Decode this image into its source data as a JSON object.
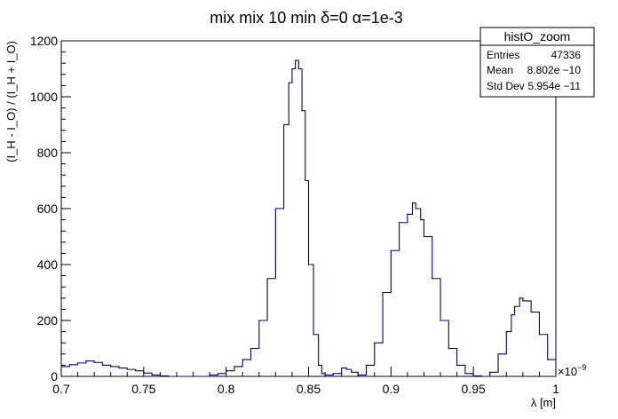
{
  "chart_data": {
    "type": "line",
    "title": "mix mix 10 min  δ=0 α=1e-3",
    "xlabel": "λ [m]",
    "ylabel": "(I_H - I_O) / (I_H + I_O)",
    "x_exponent_label": "×10",
    "x_exponent_power": "−9",
    "xlim": [
      0.7,
      1.0
    ],
    "ylim": [
      0,
      1200
    ],
    "x_ticks": [
      "0.7",
      "0.75",
      "0.8",
      "0.85",
      "0.9",
      "0.95",
      "1"
    ],
    "y_ticks": [
      "0",
      "200",
      "400",
      "600",
      "800",
      "1000",
      "1200"
    ],
    "line_color": "#00007f",
    "grid": false,
    "legend": "none",
    "stats_box": {
      "name": "histO_zoom",
      "rows": [
        {
          "label": "Entries",
          "value": "47336"
        },
        {
          "label": "Mean",
          "value": "8.802e −10"
        },
        {
          "label": "Std Dev",
          "value": "5.954e −11"
        }
      ]
    },
    "series": [
      {
        "x": [
          0.7,
          0.705,
          0.71,
          0.715,
          0.72,
          0.725,
          0.73,
          0.735,
          0.74,
          0.745,
          0.75,
          0.755,
          0.76,
          0.765,
          0.77,
          0.775,
          0.78,
          0.785,
          0.79,
          0.795,
          0.8,
          0.805,
          0.81,
          0.815,
          0.82,
          0.825,
          0.83,
          0.835,
          0.838,
          0.84,
          0.842,
          0.844,
          0.846,
          0.848,
          0.85,
          0.853,
          0.856,
          0.858,
          0.86,
          0.865,
          0.87,
          0.873,
          0.876,
          0.88,
          0.885,
          0.89,
          0.895,
          0.9,
          0.905,
          0.91,
          0.913,
          0.915,
          0.918,
          0.92,
          0.925,
          0.93,
          0.935,
          0.94,
          0.945,
          0.95,
          0.955,
          0.96,
          0.965,
          0.97,
          0.973,
          0.975,
          0.978,
          0.98,
          0.985,
          0.99,
          0.995,
          1.0
        ],
        "y": [
          35,
          42,
          48,
          55,
          50,
          40,
          35,
          30,
          25,
          20,
          12,
          5,
          2,
          0,
          0,
          0,
          0,
          0,
          5,
          10,
          20,
          35,
          60,
          100,
          200,
          350,
          600,
          900,
          1050,
          1100,
          1130,
          1100,
          950,
          700,
          400,
          150,
          40,
          10,
          5,
          10,
          30,
          25,
          15,
          5,
          40,
          120,
          300,
          450,
          550,
          580,
          620,
          600,
          560,
          500,
          350,
          200,
          100,
          40,
          10,
          2,
          0,
          15,
          80,
          160,
          220,
          250,
          280,
          270,
          230,
          150,
          60,
          0
        ]
      }
    ]
  }
}
